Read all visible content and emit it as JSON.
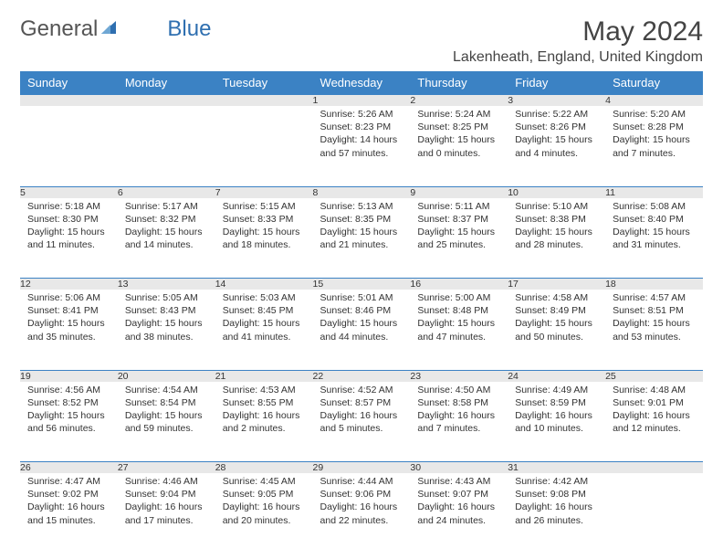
{
  "logo": {
    "text1": "General",
    "text2": "Blue",
    "color1": "#666666",
    "color2": "#2f6fb0",
    "icon_color": "#2f6fb0"
  },
  "title": "May 2024",
  "location": "Lakenheath, England, United Kingdom",
  "header_bg": "#3b82c4",
  "header_fg": "#ffffff",
  "daynum_bg": "#e8e8e8",
  "border_color": "#3b82c4",
  "weekdays": [
    "Sunday",
    "Monday",
    "Tuesday",
    "Wednesday",
    "Thursday",
    "Friday",
    "Saturday"
  ],
  "weeks": [
    [
      {
        "n": "",
        "sr": "",
        "ss": "",
        "dl": ""
      },
      {
        "n": "",
        "sr": "",
        "ss": "",
        "dl": ""
      },
      {
        "n": "",
        "sr": "",
        "ss": "",
        "dl": ""
      },
      {
        "n": "1",
        "sr": "Sunrise: 5:26 AM",
        "ss": "Sunset: 8:23 PM",
        "dl": "Daylight: 14 hours and 57 minutes."
      },
      {
        "n": "2",
        "sr": "Sunrise: 5:24 AM",
        "ss": "Sunset: 8:25 PM",
        "dl": "Daylight: 15 hours and 0 minutes."
      },
      {
        "n": "3",
        "sr": "Sunrise: 5:22 AM",
        "ss": "Sunset: 8:26 PM",
        "dl": "Daylight: 15 hours and 4 minutes."
      },
      {
        "n": "4",
        "sr": "Sunrise: 5:20 AM",
        "ss": "Sunset: 8:28 PM",
        "dl": "Daylight: 15 hours and 7 minutes."
      }
    ],
    [
      {
        "n": "5",
        "sr": "Sunrise: 5:18 AM",
        "ss": "Sunset: 8:30 PM",
        "dl": "Daylight: 15 hours and 11 minutes."
      },
      {
        "n": "6",
        "sr": "Sunrise: 5:17 AM",
        "ss": "Sunset: 8:32 PM",
        "dl": "Daylight: 15 hours and 14 minutes."
      },
      {
        "n": "7",
        "sr": "Sunrise: 5:15 AM",
        "ss": "Sunset: 8:33 PM",
        "dl": "Daylight: 15 hours and 18 minutes."
      },
      {
        "n": "8",
        "sr": "Sunrise: 5:13 AM",
        "ss": "Sunset: 8:35 PM",
        "dl": "Daylight: 15 hours and 21 minutes."
      },
      {
        "n": "9",
        "sr": "Sunrise: 5:11 AM",
        "ss": "Sunset: 8:37 PM",
        "dl": "Daylight: 15 hours and 25 minutes."
      },
      {
        "n": "10",
        "sr": "Sunrise: 5:10 AM",
        "ss": "Sunset: 8:38 PM",
        "dl": "Daylight: 15 hours and 28 minutes."
      },
      {
        "n": "11",
        "sr": "Sunrise: 5:08 AM",
        "ss": "Sunset: 8:40 PM",
        "dl": "Daylight: 15 hours and 31 minutes."
      }
    ],
    [
      {
        "n": "12",
        "sr": "Sunrise: 5:06 AM",
        "ss": "Sunset: 8:41 PM",
        "dl": "Daylight: 15 hours and 35 minutes."
      },
      {
        "n": "13",
        "sr": "Sunrise: 5:05 AM",
        "ss": "Sunset: 8:43 PM",
        "dl": "Daylight: 15 hours and 38 minutes."
      },
      {
        "n": "14",
        "sr": "Sunrise: 5:03 AM",
        "ss": "Sunset: 8:45 PM",
        "dl": "Daylight: 15 hours and 41 minutes."
      },
      {
        "n": "15",
        "sr": "Sunrise: 5:01 AM",
        "ss": "Sunset: 8:46 PM",
        "dl": "Daylight: 15 hours and 44 minutes."
      },
      {
        "n": "16",
        "sr": "Sunrise: 5:00 AM",
        "ss": "Sunset: 8:48 PM",
        "dl": "Daylight: 15 hours and 47 minutes."
      },
      {
        "n": "17",
        "sr": "Sunrise: 4:58 AM",
        "ss": "Sunset: 8:49 PM",
        "dl": "Daylight: 15 hours and 50 minutes."
      },
      {
        "n": "18",
        "sr": "Sunrise: 4:57 AM",
        "ss": "Sunset: 8:51 PM",
        "dl": "Daylight: 15 hours and 53 minutes."
      }
    ],
    [
      {
        "n": "19",
        "sr": "Sunrise: 4:56 AM",
        "ss": "Sunset: 8:52 PM",
        "dl": "Daylight: 15 hours and 56 minutes."
      },
      {
        "n": "20",
        "sr": "Sunrise: 4:54 AM",
        "ss": "Sunset: 8:54 PM",
        "dl": "Daylight: 15 hours and 59 minutes."
      },
      {
        "n": "21",
        "sr": "Sunrise: 4:53 AM",
        "ss": "Sunset: 8:55 PM",
        "dl": "Daylight: 16 hours and 2 minutes."
      },
      {
        "n": "22",
        "sr": "Sunrise: 4:52 AM",
        "ss": "Sunset: 8:57 PM",
        "dl": "Daylight: 16 hours and 5 minutes."
      },
      {
        "n": "23",
        "sr": "Sunrise: 4:50 AM",
        "ss": "Sunset: 8:58 PM",
        "dl": "Daylight: 16 hours and 7 minutes."
      },
      {
        "n": "24",
        "sr": "Sunrise: 4:49 AM",
        "ss": "Sunset: 8:59 PM",
        "dl": "Daylight: 16 hours and 10 minutes."
      },
      {
        "n": "25",
        "sr": "Sunrise: 4:48 AM",
        "ss": "Sunset: 9:01 PM",
        "dl": "Daylight: 16 hours and 12 minutes."
      }
    ],
    [
      {
        "n": "26",
        "sr": "Sunrise: 4:47 AM",
        "ss": "Sunset: 9:02 PM",
        "dl": "Daylight: 16 hours and 15 minutes."
      },
      {
        "n": "27",
        "sr": "Sunrise: 4:46 AM",
        "ss": "Sunset: 9:04 PM",
        "dl": "Daylight: 16 hours and 17 minutes."
      },
      {
        "n": "28",
        "sr": "Sunrise: 4:45 AM",
        "ss": "Sunset: 9:05 PM",
        "dl": "Daylight: 16 hours and 20 minutes."
      },
      {
        "n": "29",
        "sr": "Sunrise: 4:44 AM",
        "ss": "Sunset: 9:06 PM",
        "dl": "Daylight: 16 hours and 22 minutes."
      },
      {
        "n": "30",
        "sr": "Sunrise: 4:43 AM",
        "ss": "Sunset: 9:07 PM",
        "dl": "Daylight: 16 hours and 24 minutes."
      },
      {
        "n": "31",
        "sr": "Sunrise: 4:42 AM",
        "ss": "Sunset: 9:08 PM",
        "dl": "Daylight: 16 hours and 26 minutes."
      },
      {
        "n": "",
        "sr": "",
        "ss": "",
        "dl": ""
      }
    ]
  ]
}
